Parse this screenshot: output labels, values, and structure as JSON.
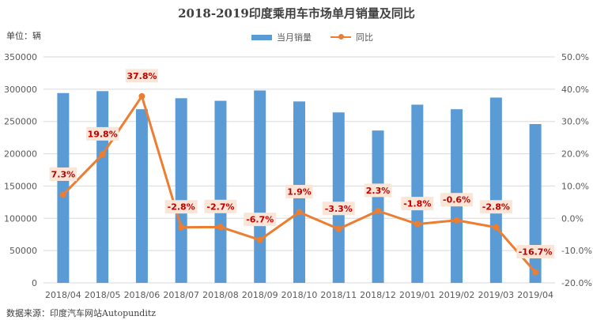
{
  "title": "2018-2019印度乘用车市场单月销量及同比",
  "unit_label": "单位：辆",
  "source_label": "数据来源：印度汽车网站Autopunditz",
  "colors": {
    "bar": "#5b9bd5",
    "line": "#ed7d31",
    "label_bg": "#fbe5d6",
    "label_text": "#c00000"
  },
  "chart_data": {
    "type": "bar",
    "categories": [
      "2018/04",
      "2018/05",
      "2018/06",
      "2018/07",
      "2018/08",
      "2018/09",
      "2018/10",
      "2018/11",
      "2018/12",
      "2019/01",
      "2019/02",
      "2019/03",
      "2019/04"
    ],
    "series": [
      {
        "name": "当月销量",
        "type": "bar",
        "axis": "left",
        "values": [
          294000,
          297000,
          269000,
          286000,
          282000,
          298000,
          281000,
          264000,
          236000,
          276000,
          269000,
          287000,
          246000
        ]
      },
      {
        "name": "同比",
        "type": "line",
        "axis": "right",
        "values": [
          7.3,
          19.8,
          37.8,
          -2.8,
          -2.7,
          -6.7,
          1.9,
          -3.3,
          2.3,
          -1.8,
          -0.6,
          -2.8,
          -16.7
        ],
        "labels": [
          "7.3%",
          "19.8%",
          "37.8%",
          "-2.8%",
          "-2.7%",
          "-6.7%",
          "1.9%",
          "-3.3%",
          "2.3%",
          "-1.8%",
          "-0.6%",
          "-2.8%",
          "-16.7%"
        ]
      }
    ],
    "y_left": {
      "min": 0,
      "max": 350000,
      "step": 50000,
      "ticks": [
        "0",
        "50000",
        "100000",
        "150000",
        "200000",
        "250000",
        "300000",
        "350000"
      ]
    },
    "y_right": {
      "min": -20,
      "max": 50,
      "step": 10,
      "ticks": [
        "-20.0%",
        "-10.0%",
        "0.0%",
        "10.0%",
        "20.0%",
        "30.0%",
        "40.0%",
        "50.0%"
      ]
    },
    "grid": true,
    "legend_position": "top-center"
  }
}
